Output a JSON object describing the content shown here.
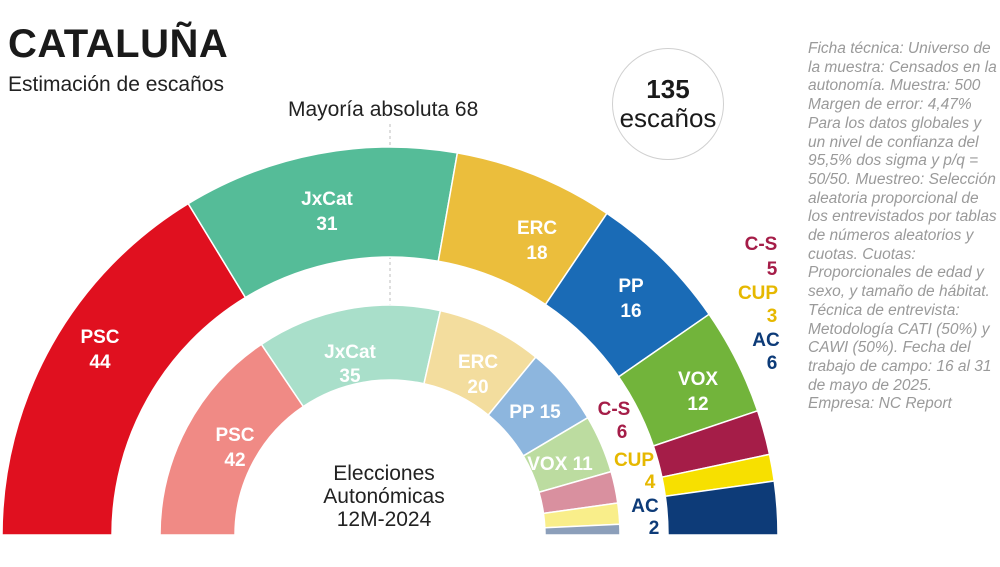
{
  "header": {
    "title": "CATALUÑA",
    "subtitle": "Estimación de escaños",
    "majority_label": "Mayoría absoluta 68",
    "total_seats": "135",
    "total_seats_label": "escaños"
  },
  "ficha_tecnica": "Ficha técnica: Universo de la muestra: Censados en la autonomía. Muestra: 500 Margen de error: 4,47% Para los datos globales y un nivel de confianza del 95,5% dos sigma y p/q = 50/50. Muestreo: Selección aleatoria proporcional de los entrevistados por tablas de números aleatorios y cuotas. Cuotas: Proporcionales de edad y sexo, y tamaño de hábitat. Técnica de entrevista: Metodología CATI (50%) y CAWI (50%). Fecha del trabajo de campo: 16 al 31 de mayo de 2025. Empresa: NC Report",
  "colors": {
    "PSC": "#e0101f",
    "JxCat": "#55bc98",
    "ERC": "#ebbe3c",
    "PP": "#1a6bb6",
    "VOX": "#72b43b",
    "C-S": "#a51d48",
    "CUP": "#f7e000",
    "AC": "#0d3b78"
  },
  "chart_data": [
    {
      "type": "parliament-semicircle",
      "title": "Estimación de escaños",
      "total": 135,
      "majority": 68,
      "series": [
        {
          "name": "PSC",
          "value": 44,
          "color": "#e0101f",
          "label_color": "#ffffff"
        },
        {
          "name": "JxCat",
          "value": 31,
          "color": "#55bc98",
          "label_color": "#ffffff"
        },
        {
          "name": "ERC",
          "value": 18,
          "color": "#ebbe3c",
          "label_color": "#ffffff"
        },
        {
          "name": "PP",
          "value": 16,
          "color": "#1a6bb6",
          "label_color": "#ffffff"
        },
        {
          "name": "VOX",
          "value": 12,
          "color": "#72b43b",
          "label_color": "#ffffff"
        },
        {
          "name": "C-S",
          "value": 5,
          "color": "#a51d48",
          "label_color": "#a51d48"
        },
        {
          "name": "CUP",
          "value": 3,
          "color": "#f7e000",
          "label_color": "#e6b800"
        },
        {
          "name": "AC",
          "value": 6,
          "color": "#0d3b78",
          "label_color": "#0d3b78"
        }
      ]
    },
    {
      "type": "parliament-semicircle",
      "title": "Elecciones Autonómicas 12M-2024",
      "title_lines": [
        "Elecciones",
        "Autonómicas",
        "12M-2024"
      ],
      "total": 135,
      "series": [
        {
          "name": "PSC",
          "value": 42,
          "color": "#f08a85",
          "label_color": "#ffffff"
        },
        {
          "name": "JxCat",
          "value": 35,
          "color": "#a9dfca",
          "label_color": "#ffffff"
        },
        {
          "name": "ERC",
          "value": 20,
          "color": "#f3dd9e",
          "label_color": "#ffffff"
        },
        {
          "name": "PP",
          "value": 15,
          "color": "#8db6de",
          "label_color": "#ffffff"
        },
        {
          "name": "VOX",
          "value": 11,
          "color": "#bcdca0",
          "label_color": "#ffffff"
        },
        {
          "name": "C-S",
          "value": 6,
          "color": "#d9909f",
          "label_color": "#a51d48"
        },
        {
          "name": "CUP",
          "value": 4,
          "color": "#f9ee8a",
          "label_color": "#e6b800"
        },
        {
          "name": "AC",
          "value": 2,
          "color": "#8c9fba",
          "label_color": "#0d3b78"
        }
      ]
    }
  ]
}
